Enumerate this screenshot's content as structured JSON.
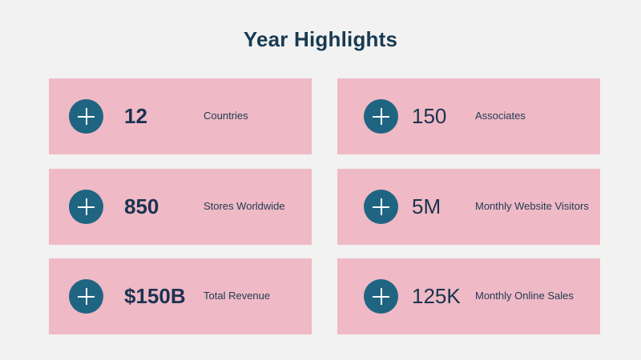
{
  "slide": {
    "title": "Year Highlights"
  },
  "colors": {
    "background": "#f2f2f2",
    "card": "#efb9c5",
    "icon": "#1f6582",
    "text": "#1a3350"
  },
  "highlights": [
    {
      "value": "12",
      "label": "Countries",
      "icon": "plus-icon"
    },
    {
      "value": "150",
      "label": "Associates",
      "icon": "plus-icon"
    },
    {
      "value": "850",
      "label": "Stores Worldwide",
      "icon": "plus-icon"
    },
    {
      "value": "5M",
      "label": "Monthly Website Visitors",
      "icon": "plus-icon"
    },
    {
      "value": "$150B",
      "label": "Total Revenue",
      "icon": "plus-icon"
    },
    {
      "value": "125K",
      "label": "Monthly Online Sales",
      "icon": "plus-icon"
    }
  ]
}
